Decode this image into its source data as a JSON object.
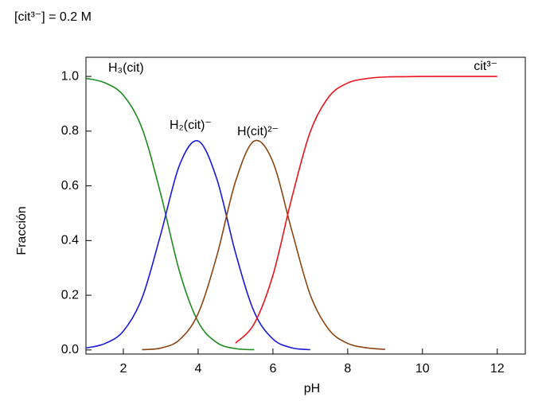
{
  "chart_data": {
    "type": "line",
    "annotation": "[cit³⁻] = 0.2 M",
    "x_label": "pH",
    "y_label": "Fracción",
    "x": [
      1,
      1.5,
      2,
      2.5,
      3,
      3.5,
      4,
      4.5,
      5,
      5.5,
      6,
      6.5,
      7,
      7.5,
      8,
      8.5,
      9,
      9.5,
      10,
      10.5,
      11,
      11.5,
      12
    ],
    "series": [
      {
        "name": "H₃(cit)",
        "color": "#1f8a1f",
        "values": [
          0.993,
          0.977,
          0.931,
          0.81,
          0.57,
          0.288,
          0.103,
          0.027,
          0.005,
          0.001,
          null,
          null,
          null,
          null,
          null,
          null,
          null,
          null,
          null,
          null,
          null,
          null,
          null
        ]
      },
      {
        "name": "H₂(cit)⁻",
        "color": "#1a1ad6",
        "values": [
          0.007,
          0.023,
          0.069,
          0.19,
          0.423,
          0.675,
          0.764,
          0.625,
          0.355,
          0.139,
          0.04,
          0.008,
          0.001,
          null,
          null,
          null,
          null,
          null,
          null,
          null,
          null,
          null,
          null
        ]
      },
      {
        "name": "H(cit)²⁻",
        "color": "#8b4513",
        "values": [
          null,
          null,
          null,
          0.001,
          0.007,
          0.037,
          0.133,
          0.344,
          0.616,
          0.764,
          0.687,
          0.439,
          0.201,
          0.074,
          0.024,
          0.008,
          0.002,
          null,
          null,
          null,
          null,
          null,
          null
        ]
      },
      {
        "name": "cit³⁻",
        "color": "#e8141e",
        "values": [
          null,
          null,
          null,
          null,
          null,
          null,
          null,
          null,
          0.025,
          0.096,
          0.273,
          0.553,
          0.798,
          0.926,
          0.976,
          0.992,
          0.998,
          0.999,
          1,
          1,
          1,
          1,
          1
        ]
      }
    ],
    "xlim": [
      1,
      12.75
    ],
    "ylim": [
      -0.015,
      1.07
    ],
    "xticks": [
      2,
      4,
      6,
      8,
      10,
      12
    ],
    "yticks": [
      {
        "value": 0,
        "label": "0.0"
      },
      0.2,
      0.4,
      0.6,
      0.8,
      {
        "value": 1,
        "label": "1.0"
      }
    ]
  }
}
